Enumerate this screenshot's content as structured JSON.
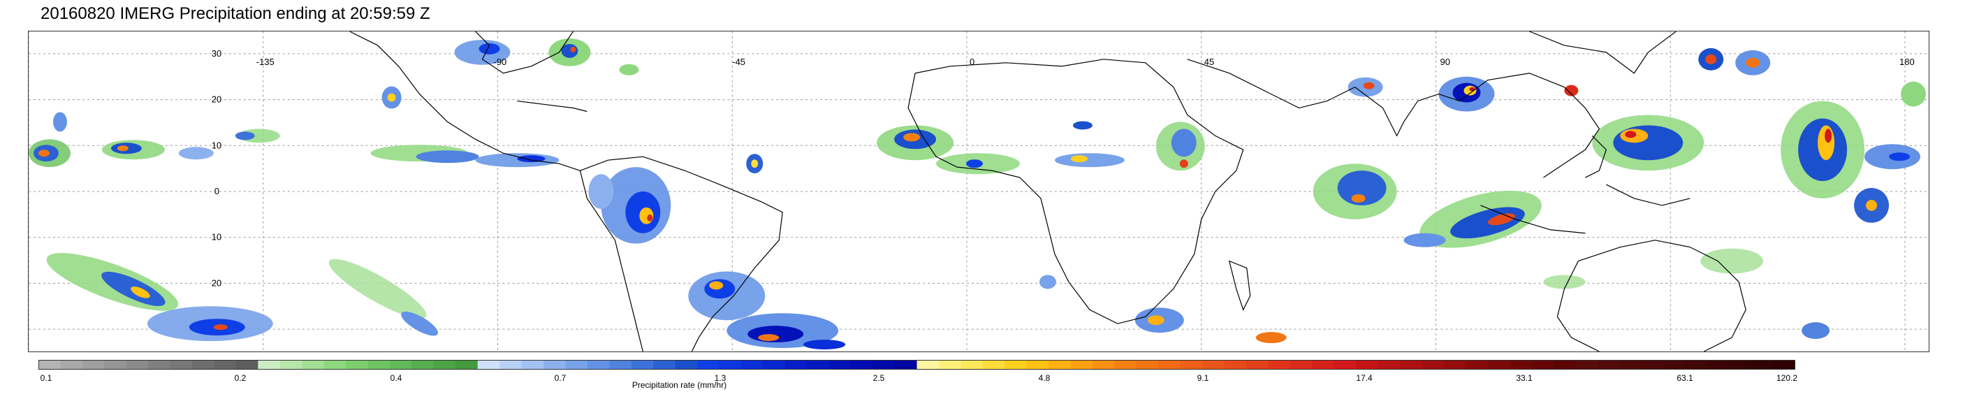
{
  "title": "20160820 IMERG Precipitation ending at 20:59:59 Z",
  "map": {
    "lat_labels": [
      "30",
      "20",
      "10",
      "0",
      "10",
      "20"
    ],
    "lon_labels": [
      "-135",
      "-90",
      "-45",
      "0",
      "45",
      "90",
      "180"
    ],
    "coastline_color": "#000000",
    "gridline_color": "#888888"
  },
  "colorbar": {
    "label": "Precipitation rate (mm/hr)",
    "tick_labels": [
      "0.1",
      "0.2",
      "0.4",
      "0.7",
      "1.3",
      "2.5",
      "4.8",
      "9.1",
      "17.4",
      "33.1",
      "63.1",
      "120.2"
    ],
    "colors": [
      "#b4b4b4",
      "#a9a9a9",
      "#9f9f9f",
      "#959595",
      "#8b8b8b",
      "#808080",
      "#777777",
      "#6e6e6e",
      "#656565",
      "#5d5d5d",
      "#cdecc4",
      "#b8e6ab",
      "#a3df94",
      "#8fd87f",
      "#7cce6c",
      "#6ec463",
      "#62b958",
      "#57ae4f",
      "#4ca445",
      "#419a3c",
      "#cfe0fb",
      "#b9d1f7",
      "#a3c1f2",
      "#8db1ee",
      "#78a2ea",
      "#6492e6",
      "#5082e0",
      "#3d72da",
      "#2b61d3",
      "#1a50cc",
      "#0e3fe6",
      "#0c36e0",
      "#0a2ed8",
      "#0826d0",
      "#061ec8",
      "#0418bf",
      "#0212b8",
      "#010db0",
      "#0008a8",
      "#0004a0",
      "#fff7a0",
      "#fff07a",
      "#ffe85a",
      "#ffdd3a",
      "#ffd01e",
      "#ffc112",
      "#ffb012",
      "#fca012",
      "#f89012",
      "#f48012",
      "#f27514",
      "#f06a16",
      "#ee5f18",
      "#ea551a",
      "#e64a1a",
      "#e2401a",
      "#de351a",
      "#da2b1a",
      "#d6211a",
      "#d2181a",
      "#c41414",
      "#b81212",
      "#ac1010",
      "#a00e0e",
      "#940c0c",
      "#880a0a",
      "#7c0808",
      "#700707",
      "#660606",
      "#5c0505",
      "#5a0b0b",
      "#550a0a",
      "#500909",
      "#4b0808",
      "#460707",
      "#410606",
      "#3c0505",
      "#370404",
      "#320303",
      "#2e0202"
    ]
  }
}
